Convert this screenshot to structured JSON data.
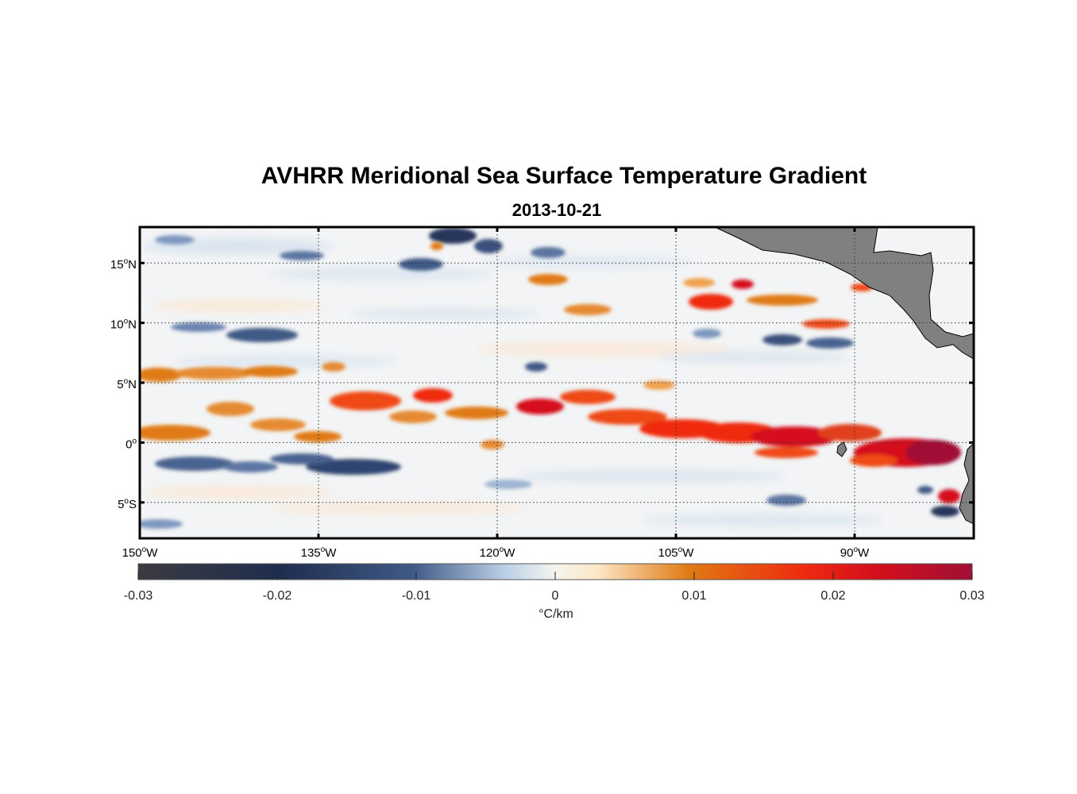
{
  "title": "AVHRR Meridional Sea Surface Temperature Gradient",
  "subtitle": "2013-10-21",
  "map": {
    "lon_range": [
      -150,
      -80
    ],
    "lat_range": [
      -8,
      18
    ],
    "lat_ticks": [
      {
        "value": 15,
        "num": "15",
        "hem": "N"
      },
      {
        "value": 10,
        "num": "10",
        "hem": "N"
      },
      {
        "value": 5,
        "num": "5",
        "hem": "N"
      },
      {
        "value": 0,
        "num": "0",
        "hem": ""
      },
      {
        "value": -5,
        "num": "5",
        "hem": "S"
      }
    ],
    "lon_ticks": [
      {
        "value": -150,
        "num": "150",
        "hem": "W"
      },
      {
        "value": -135,
        "num": "135",
        "hem": "W"
      },
      {
        "value": -120,
        "num": "120",
        "hem": "W"
      },
      {
        "value": -105,
        "num": "105",
        "hem": "W"
      },
      {
        "value": -90,
        "num": "90",
        "hem": "W"
      }
    ],
    "grid": true,
    "land_color": "#808080",
    "ocean_color": "#f2f4f5"
  },
  "colorbar": {
    "range": [
      -0.03,
      0.03
    ],
    "ticks": [
      "-0.03",
      "-0.02",
      "-0.01",
      "0",
      "0.01",
      "0.02",
      "0.03"
    ],
    "units": "°C/km",
    "colormap": [
      "#3b3b3f",
      "#1f2d4f",
      "#3f5a86",
      "#bcd0e6",
      "#f4f4ee",
      "#fde7c8",
      "#e07a12",
      "#ef2a10",
      "#d5101a",
      "#a00f35"
    ]
  }
}
